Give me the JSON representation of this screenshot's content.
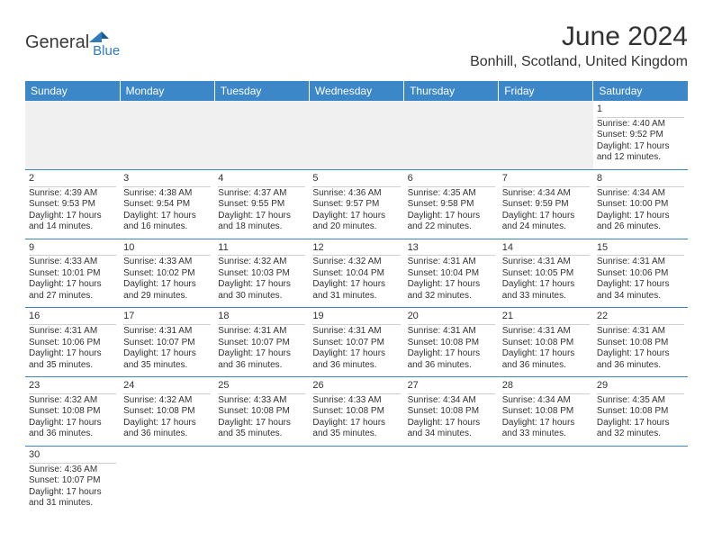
{
  "logo": {
    "text1": "General",
    "text2": "Blue"
  },
  "title": "June 2024",
  "location": "Bonhill, Scotland, United Kingdom",
  "colors": {
    "header_bg": "#3b87c8",
    "header_text": "#ffffff",
    "logo_blue": "#2f7bbf",
    "text": "#333333",
    "empty_bg": "#f0f0f0",
    "row_border": "#3b87c8"
  },
  "weekdays": [
    "Sunday",
    "Monday",
    "Tuesday",
    "Wednesday",
    "Thursday",
    "Friday",
    "Saturday"
  ],
  "weeks": [
    [
      null,
      null,
      null,
      null,
      null,
      null,
      {
        "n": "1",
        "sr": "Sunrise: 4:40 AM",
        "ss": "Sunset: 9:52 PM",
        "dl1": "Daylight: 17 hours",
        "dl2": "and 12 minutes."
      }
    ],
    [
      {
        "n": "2",
        "sr": "Sunrise: 4:39 AM",
        "ss": "Sunset: 9:53 PM",
        "dl1": "Daylight: 17 hours",
        "dl2": "and 14 minutes."
      },
      {
        "n": "3",
        "sr": "Sunrise: 4:38 AM",
        "ss": "Sunset: 9:54 PM",
        "dl1": "Daylight: 17 hours",
        "dl2": "and 16 minutes."
      },
      {
        "n": "4",
        "sr": "Sunrise: 4:37 AM",
        "ss": "Sunset: 9:55 PM",
        "dl1": "Daylight: 17 hours",
        "dl2": "and 18 minutes."
      },
      {
        "n": "5",
        "sr": "Sunrise: 4:36 AM",
        "ss": "Sunset: 9:57 PM",
        "dl1": "Daylight: 17 hours",
        "dl2": "and 20 minutes."
      },
      {
        "n": "6",
        "sr": "Sunrise: 4:35 AM",
        "ss": "Sunset: 9:58 PM",
        "dl1": "Daylight: 17 hours",
        "dl2": "and 22 minutes."
      },
      {
        "n": "7",
        "sr": "Sunrise: 4:34 AM",
        "ss": "Sunset: 9:59 PM",
        "dl1": "Daylight: 17 hours",
        "dl2": "and 24 minutes."
      },
      {
        "n": "8",
        "sr": "Sunrise: 4:34 AM",
        "ss": "Sunset: 10:00 PM",
        "dl1": "Daylight: 17 hours",
        "dl2": "and 26 minutes."
      }
    ],
    [
      {
        "n": "9",
        "sr": "Sunrise: 4:33 AM",
        "ss": "Sunset: 10:01 PM",
        "dl1": "Daylight: 17 hours",
        "dl2": "and 27 minutes."
      },
      {
        "n": "10",
        "sr": "Sunrise: 4:33 AM",
        "ss": "Sunset: 10:02 PM",
        "dl1": "Daylight: 17 hours",
        "dl2": "and 29 minutes."
      },
      {
        "n": "11",
        "sr": "Sunrise: 4:32 AM",
        "ss": "Sunset: 10:03 PM",
        "dl1": "Daylight: 17 hours",
        "dl2": "and 30 minutes."
      },
      {
        "n": "12",
        "sr": "Sunrise: 4:32 AM",
        "ss": "Sunset: 10:04 PM",
        "dl1": "Daylight: 17 hours",
        "dl2": "and 31 minutes."
      },
      {
        "n": "13",
        "sr": "Sunrise: 4:31 AM",
        "ss": "Sunset: 10:04 PM",
        "dl1": "Daylight: 17 hours",
        "dl2": "and 32 minutes."
      },
      {
        "n": "14",
        "sr": "Sunrise: 4:31 AM",
        "ss": "Sunset: 10:05 PM",
        "dl1": "Daylight: 17 hours",
        "dl2": "and 33 minutes."
      },
      {
        "n": "15",
        "sr": "Sunrise: 4:31 AM",
        "ss": "Sunset: 10:06 PM",
        "dl1": "Daylight: 17 hours",
        "dl2": "and 34 minutes."
      }
    ],
    [
      {
        "n": "16",
        "sr": "Sunrise: 4:31 AM",
        "ss": "Sunset: 10:06 PM",
        "dl1": "Daylight: 17 hours",
        "dl2": "and 35 minutes."
      },
      {
        "n": "17",
        "sr": "Sunrise: 4:31 AM",
        "ss": "Sunset: 10:07 PM",
        "dl1": "Daylight: 17 hours",
        "dl2": "and 35 minutes."
      },
      {
        "n": "18",
        "sr": "Sunrise: 4:31 AM",
        "ss": "Sunset: 10:07 PM",
        "dl1": "Daylight: 17 hours",
        "dl2": "and 36 minutes."
      },
      {
        "n": "19",
        "sr": "Sunrise: 4:31 AM",
        "ss": "Sunset: 10:07 PM",
        "dl1": "Daylight: 17 hours",
        "dl2": "and 36 minutes."
      },
      {
        "n": "20",
        "sr": "Sunrise: 4:31 AM",
        "ss": "Sunset: 10:08 PM",
        "dl1": "Daylight: 17 hours",
        "dl2": "and 36 minutes."
      },
      {
        "n": "21",
        "sr": "Sunrise: 4:31 AM",
        "ss": "Sunset: 10:08 PM",
        "dl1": "Daylight: 17 hours",
        "dl2": "and 36 minutes."
      },
      {
        "n": "22",
        "sr": "Sunrise: 4:31 AM",
        "ss": "Sunset: 10:08 PM",
        "dl1": "Daylight: 17 hours",
        "dl2": "and 36 minutes."
      }
    ],
    [
      {
        "n": "23",
        "sr": "Sunrise: 4:32 AM",
        "ss": "Sunset: 10:08 PM",
        "dl1": "Daylight: 17 hours",
        "dl2": "and 36 minutes."
      },
      {
        "n": "24",
        "sr": "Sunrise: 4:32 AM",
        "ss": "Sunset: 10:08 PM",
        "dl1": "Daylight: 17 hours",
        "dl2": "and 36 minutes."
      },
      {
        "n": "25",
        "sr": "Sunrise: 4:33 AM",
        "ss": "Sunset: 10:08 PM",
        "dl1": "Daylight: 17 hours",
        "dl2": "and 35 minutes."
      },
      {
        "n": "26",
        "sr": "Sunrise: 4:33 AM",
        "ss": "Sunset: 10:08 PM",
        "dl1": "Daylight: 17 hours",
        "dl2": "and 35 minutes."
      },
      {
        "n": "27",
        "sr": "Sunrise: 4:34 AM",
        "ss": "Sunset: 10:08 PM",
        "dl1": "Daylight: 17 hours",
        "dl2": "and 34 minutes."
      },
      {
        "n": "28",
        "sr": "Sunrise: 4:34 AM",
        "ss": "Sunset: 10:08 PM",
        "dl1": "Daylight: 17 hours",
        "dl2": "and 33 minutes."
      },
      {
        "n": "29",
        "sr": "Sunrise: 4:35 AM",
        "ss": "Sunset: 10:08 PM",
        "dl1": "Daylight: 17 hours",
        "dl2": "and 32 minutes."
      }
    ],
    [
      {
        "n": "30",
        "sr": "Sunrise: 4:36 AM",
        "ss": "Sunset: 10:07 PM",
        "dl1": "Daylight: 17 hours",
        "dl2": "and 31 minutes."
      },
      null,
      null,
      null,
      null,
      null,
      null
    ]
  ]
}
